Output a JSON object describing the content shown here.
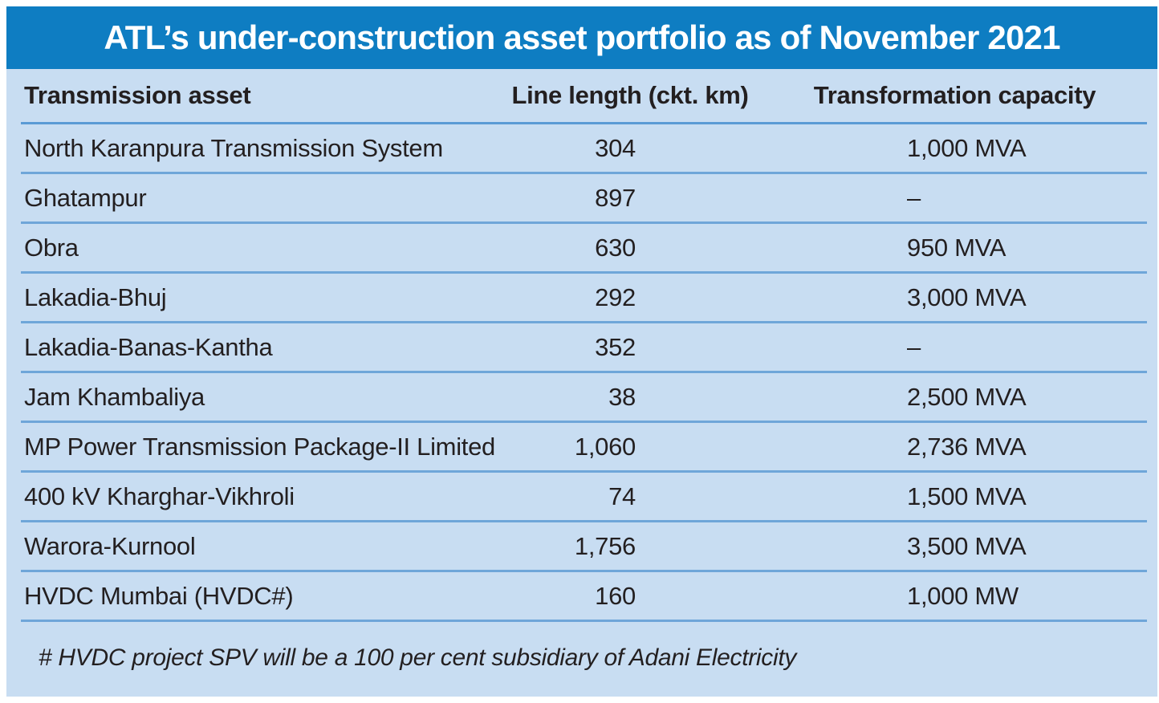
{
  "chart_data": {
    "type": "table",
    "title": "ATL’s under-construction asset portfolio as of November 2021",
    "columns": [
      "Transmission asset",
      "Line length (ckt. km)",
      "Transformation capacity"
    ],
    "rows": [
      [
        "North Karanpura Transmission System",
        "304",
        "1,000 MVA"
      ],
      [
        "Ghatampur",
        "897",
        "–"
      ],
      [
        "Obra",
        "630",
        "950 MVA"
      ],
      [
        "Lakadia-Bhuj",
        "292",
        "3,000 MVA"
      ],
      [
        "Lakadia-Banas-Kantha",
        "352",
        "–"
      ],
      [
        "Jam Khambaliya",
        "38",
        "2,500 MVA"
      ],
      [
        "MP Power Transmission Package-II Limited",
        "1,060",
        "2,736 MVA"
      ],
      [
        "400 kV Kharghar-Vikhroli",
        "74",
        "1,500 MVA"
      ],
      [
        "Warora-Kurnool",
        "1,756",
        "3,500 MVA"
      ],
      [
        "HVDC Mumbai (HVDC#)",
        "160",
        "1,000 MW"
      ]
    ],
    "footnote": "# HVDC project SPV will be a 100 per cent subsidiary of Adani Electricity",
    "layout_hints": {
      "line_length_values_alignment": "right",
      "capacity_values_alignment": "left",
      "grid": "horizontal-rules-only"
    }
  },
  "colors": {
    "title_bar": "#0e7dc2",
    "panel_bg": "#c8ddf2",
    "separator": "#6fa6d9",
    "separator_strong": "#5b9bd5",
    "text": "#231f20",
    "page_bg": "#ffffff"
  }
}
